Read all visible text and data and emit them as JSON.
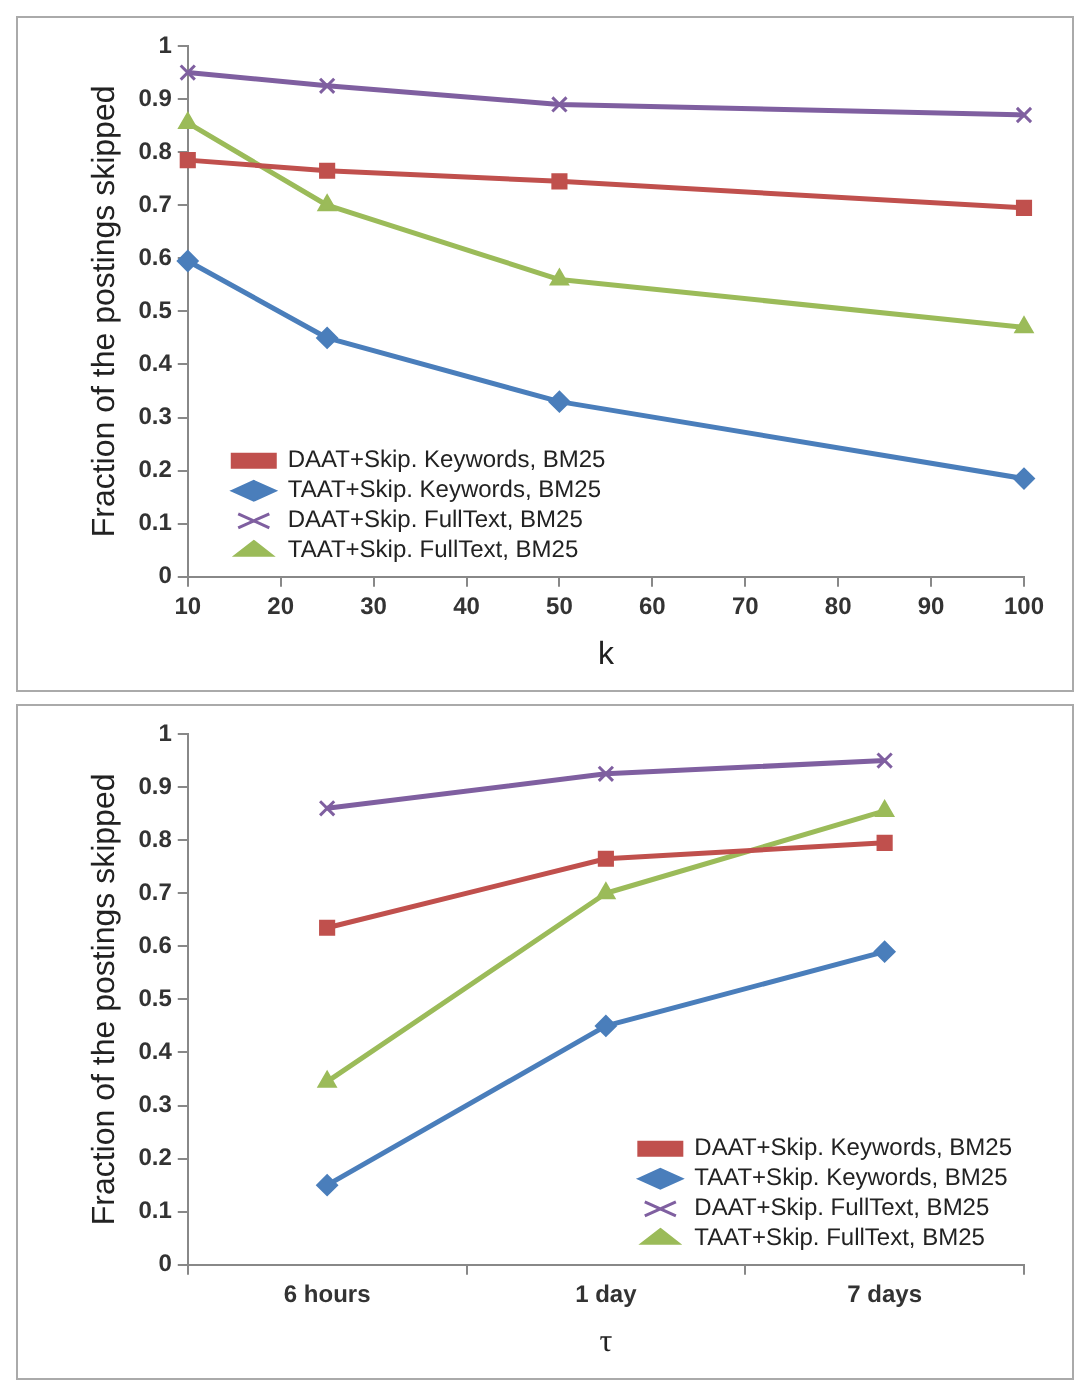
{
  "chart_data": [
    {
      "type": "line",
      "xlabel": "k",
      "ylabel": "Fraction of the postings skipped",
      "x": [
        10,
        25,
        50,
        100
      ],
      "xlim": [
        10,
        100
      ],
      "xticks": [
        10,
        20,
        30,
        40,
        50,
        60,
        70,
        80,
        90,
        100
      ],
      "ylim": [
        0,
        1
      ],
      "yticks": [
        0,
        0.1,
        0.2,
        0.3,
        0.4,
        0.5,
        0.6,
        0.7,
        0.8,
        0.9,
        1
      ],
      "grid": false,
      "legend": "bottom left",
      "line_style": "solid",
      "series": [
        {
          "name": "DAAT+Skip. Keywords, BM25",
          "color": "#c0504d",
          "marker": "square",
          "values": [
            0.785,
            0.765,
            0.745,
            0.695
          ]
        },
        {
          "name": "TAAT+Skip. Keywords, BM25",
          "color": "#4a7ebb",
          "marker": "diamond",
          "values": [
            0.595,
            0.45,
            0.33,
            0.185
          ]
        },
        {
          "name": "DAAT+Skip. FullText, BM25",
          "color": "#7f5fa0",
          "marker": "cross",
          "values": [
            0.95,
            0.925,
            0.89,
            0.87
          ]
        },
        {
          "name": "TAAT+Skip. FullText, BM25",
          "color": "#9bbb59",
          "marker": "triangle",
          "values": [
            0.855,
            0.7,
            0.56,
            0.47
          ]
        }
      ]
    },
    {
      "type": "line",
      "xlabel": "τ",
      "ylabel": "Fraction of the postings skipped",
      "categories": [
        "6 hours",
        "1 day",
        "7 days"
      ],
      "ylim": [
        0,
        1
      ],
      "yticks": [
        0,
        0.1,
        0.2,
        0.3,
        0.4,
        0.5,
        0.6,
        0.7,
        0.8,
        0.9,
        1
      ],
      "grid": false,
      "legend": "bottom right",
      "line_style": "solid",
      "series": [
        {
          "name": "DAAT+Skip. Keywords, BM25",
          "color": "#c0504d",
          "marker": "square",
          "values": [
            0.635,
            0.765,
            0.795
          ]
        },
        {
          "name": "TAAT+Skip. Keywords, BM25",
          "color": "#4a7ebb",
          "marker": "diamond",
          "values": [
            0.15,
            0.45,
            0.59
          ]
        },
        {
          "name": "DAAT+Skip. FullText, BM25",
          "color": "#7f5fa0",
          "marker": "cross",
          "values": [
            0.86,
            0.925,
            0.95
          ]
        },
        {
          "name": "TAAT+Skip. FullText, BM25",
          "color": "#9bbb59",
          "marker": "triangle",
          "values": [
            0.345,
            0.7,
            0.855
          ]
        }
      ]
    }
  ]
}
